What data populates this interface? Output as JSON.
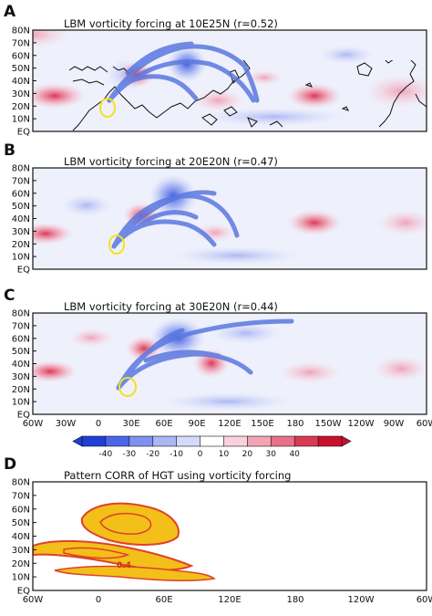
{
  "panels": [
    {
      "letter": "A",
      "title": "LBM vorticity forcing at 10E25N (r=0.52)",
      "lat_labels": [
        "80N",
        "70N",
        "60N",
        "50N",
        "40N",
        "30N",
        "20N",
        "10N",
        "EQ"
      ]
    },
    {
      "letter": "B",
      "title": "LBM vorticity forcing at 20E20N (r=0.47)",
      "lat_labels": [
        "80N",
        "70N",
        "60N",
        "50N",
        "40N",
        "30N",
        "20N",
        "10N",
        "EQ"
      ]
    },
    {
      "letter": "C",
      "title": "LBM vorticity forcing at 30E20N (r=0.44)",
      "lat_labels": [
        "80N",
        "70N",
        "60N",
        "50N",
        "40N",
        "30N",
        "20N",
        "10N",
        "EQ"
      ]
    },
    {
      "letter": "D",
      "title": "Pattern CORR of HGT using vorticity forcing",
      "lat_labels": [
        "80N",
        "70N",
        "60N",
        "50N",
        "40N",
        "30N",
        "20N",
        "10N",
        "EQ"
      ]
    }
  ],
  "lon_labels_abc": [
    "60W",
    "30W",
    "0",
    "30E",
    "60E",
    "90E",
    "120E",
    "150E",
    "180",
    "150W",
    "120W",
    "90W",
    "60W"
  ],
  "lon_labels_d": [
    "60W",
    "0",
    "60E",
    "120E",
    "180",
    "120W",
    "60W"
  ],
  "colorbar": {
    "ticks": [
      "-40",
      "-30",
      "-20",
      "-10",
      "0",
      "10",
      "20",
      "30",
      "40"
    ],
    "colors": [
      "#1f3fd8",
      "#4a66e8",
      "#7e91f0",
      "#aab6f5",
      "#d4daf9",
      "#ffffff",
      "#f9d1dc",
      "#f2a3b5",
      "#e8708a",
      "#d93a52",
      "#c8102e"
    ]
  },
  "panel_d_contour_label": "0.4",
  "colors": {
    "negative": "#5b73e6",
    "positive": "#e05070",
    "wave_track": "#5a78e0",
    "circle": "#f2e21e",
    "corr_fill": "#f2c018",
    "corr_line": "#e0402a"
  }
}
